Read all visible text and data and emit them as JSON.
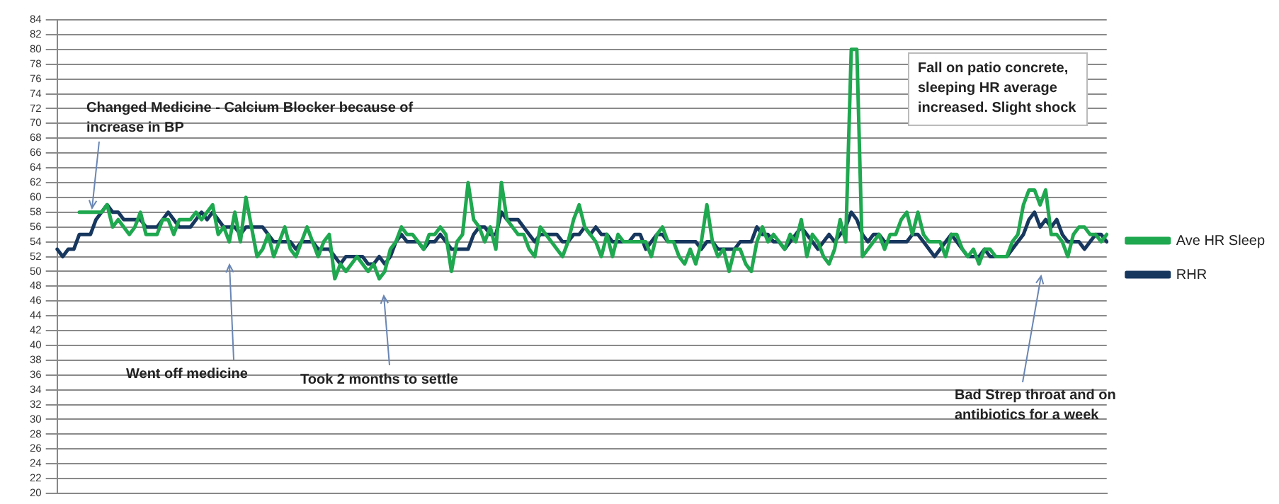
{
  "chart_data": {
    "type": "line",
    "categories": [
      null,
      null,
      null,
      null,
      null,
      null,
      null,
      null,
      null,
      null,
      null,
      null,
      null,
      null,
      null,
      null,
      null,
      null,
      null,
      null,
      null,
      null,
      null,
      null,
      null,
      null,
      null,
      null,
      null,
      null,
      null,
      null,
      null,
      null,
      null,
      null,
      null,
      null,
      null,
      null,
      null,
      null,
      null,
      null,
      null,
      null,
      null,
      null,
      null,
      null,
      null,
      null,
      null,
      null,
      null,
      null,
      null,
      null,
      null,
      null,
      null,
      null,
      null,
      null,
      null,
      null,
      null,
      null,
      null,
      null,
      null,
      null,
      null,
      null,
      null,
      null,
      null,
      null,
      null,
      null,
      null,
      null,
      null,
      null,
      null,
      null,
      null,
      null,
      null,
      null,
      null,
      null,
      null,
      null,
      null,
      null,
      null,
      null,
      null,
      null,
      null,
      null,
      null,
      null,
      null,
      null,
      null,
      null,
      null,
      null,
      null,
      null,
      null,
      null,
      null,
      null,
      null,
      null,
      null,
      null,
      null,
      null,
      null,
      null,
      null,
      null,
      null,
      null,
      null,
      null,
      null,
      null,
      null,
      null,
      null,
      null,
      null,
      null,
      null,
      null,
      null,
      null,
      null,
      null,
      null,
      null,
      null,
      null,
      null,
      null,
      null,
      null,
      null,
      null,
      null,
      null,
      null,
      null,
      null,
      null,
      null,
      null,
      null,
      null,
      null,
      null,
      null,
      null,
      null,
      null,
      null,
      null,
      null,
      null,
      null,
      null,
      null,
      null,
      null,
      null,
      null,
      null,
      null,
      null,
      null,
      null,
      null,
      null,
      null,
      null
    ],
    "series": [
      {
        "name": "Ave HR Sleep",
        "color": "#1fa84f",
        "values": [
          null,
          null,
          null,
          null,
          58,
          58,
          58,
          58,
          58,
          59,
          56,
          57,
          56,
          55,
          56,
          58,
          55,
          55,
          55,
          57,
          57,
          55,
          57,
          57,
          57,
          58,
          57,
          58,
          59,
          55,
          56,
          54,
          58,
          54,
          60,
          56,
          52,
          53,
          55,
          52,
          54,
          56,
          53,
          52,
          54,
          56,
          54,
          52,
          54,
          55,
          49,
          51,
          50,
          51,
          52,
          51,
          50,
          51,
          49,
          50,
          53,
          54,
          56,
          55,
          55,
          54,
          53,
          55,
          55,
          56,
          55,
          50,
          54,
          55,
          62,
          57,
          56,
          54,
          56,
          53,
          62,
          57,
          56,
          55,
          55,
          53,
          52,
          56,
          55,
          54,
          53,
          52,
          54,
          57,
          59,
          56,
          55,
          54,
          52,
          55,
          52,
          55,
          54,
          54,
          54,
          54,
          54,
          52,
          55,
          56,
          54,
          54,
          52,
          51,
          53,
          51,
          54,
          59,
          54,
          52,
          53,
          50,
          53,
          53,
          51,
          50,
          54,
          56,
          54,
          55,
          54,
          53,
          55,
          54,
          57,
          52,
          55,
          54,
          52,
          51,
          53,
          57,
          54,
          80,
          80,
          52,
          53,
          54,
          55,
          53,
          55,
          55,
          57,
          58,
          55,
          58,
          55,
          54,
          54,
          54,
          52,
          55,
          55,
          53,
          52,
          53,
          51,
          53,
          53,
          52,
          52,
          52,
          54,
          55,
          59,
          61,
          61,
          59,
          61,
          55,
          55,
          54,
          52,
          55,
          56,
          56,
          55,
          55,
          54,
          55
        ]
      },
      {
        "name": "RHR",
        "color": "#17375e",
        "values": [
          53,
          52,
          53,
          53,
          55,
          55,
          55,
          57,
          58,
          59,
          58,
          58,
          57,
          57,
          57,
          57,
          56,
          56,
          56,
          57,
          58,
          57,
          56,
          56,
          56,
          57,
          58,
          57,
          58,
          57,
          56,
          56,
          56,
          55,
          56,
          56,
          56,
          56,
          55,
          54,
          54,
          54,
          54,
          53,
          54,
          54,
          54,
          53,
          53,
          53,
          52,
          51,
          52,
          52,
          52,
          52,
          51,
          51,
          52,
          51,
          52,
          54,
          55,
          54,
          54,
          54,
          53,
          54,
          54,
          55,
          54,
          53,
          53,
          53,
          53,
          55,
          56,
          56,
          55,
          55,
          58,
          57,
          57,
          57,
          56,
          55,
          54,
          55,
          55,
          55,
          55,
          54,
          54,
          55,
          55,
          56,
          55,
          56,
          55,
          55,
          54,
          54,
          54,
          54,
          55,
          55,
          53,
          54,
          55,
          55,
          54,
          54,
          54,
          54,
          54,
          54,
          53,
          54,
          54,
          53,
          53,
          53,
          53,
          54,
          54,
          54,
          56,
          55,
          55,
          54,
          54,
          53,
          54,
          55,
          56,
          55,
          54,
          53,
          54,
          55,
          54,
          55,
          56,
          58,
          57,
          55,
          54,
          55,
          55,
          54,
          54,
          54,
          54,
          54,
          55,
          55,
          54,
          53,
          52,
          53,
          54,
          55,
          54,
          53,
          52,
          52,
          52,
          53,
          52,
          52,
          52,
          52,
          53,
          54,
          55,
          57,
          58,
          56,
          57,
          56,
          57,
          55,
          54,
          54,
          54,
          53,
          54,
          55,
          55,
          54
        ]
      }
    ],
    "ylim": [
      20,
      84
    ],
    "yticks": [
      20,
      22,
      24,
      26,
      28,
      30,
      32,
      34,
      36,
      38,
      40,
      42,
      44,
      46,
      48,
      50,
      52,
      54,
      56,
      58,
      60,
      62,
      64,
      66,
      68,
      70,
      72,
      74,
      76,
      78,
      80,
      82,
      84
    ],
    "grid": "y",
    "legend": "right",
    "tick_labels": "y",
    "marker": "none",
    "annotations": [
      "Changed Medicine - Calcium Blocker because of increase in BP",
      "Went off medicine",
      "Took 2 months to settle",
      "Fall on patio concrete, sleeping HR average increased. Slight shock",
      "Bad Strep throat and on antibiotics for a week"
    ]
  }
}
